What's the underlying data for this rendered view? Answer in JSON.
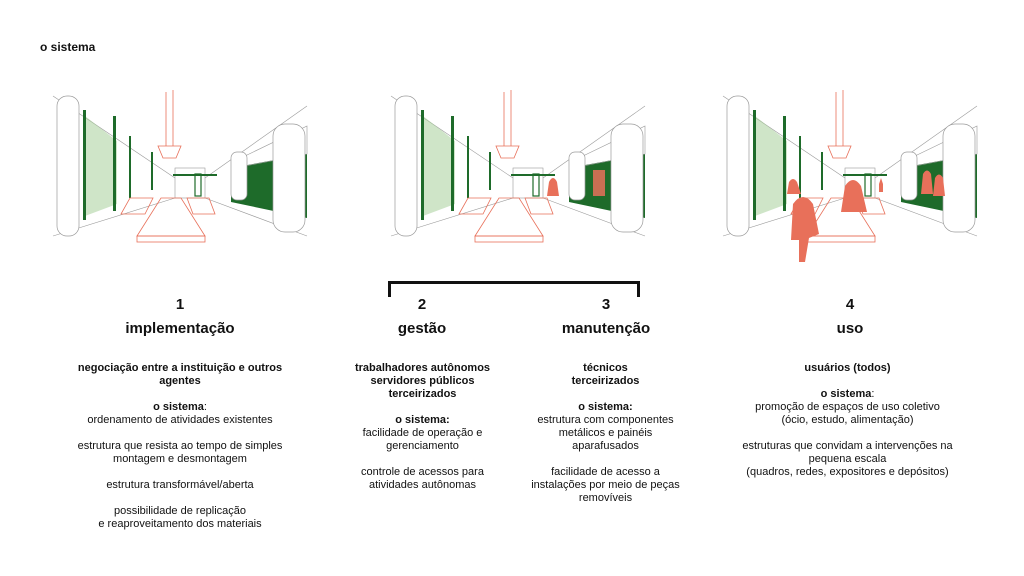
{
  "title": "o sistema",
  "phases": [
    {
      "num": "1",
      "name": "implementação"
    },
    {
      "num": "2",
      "name": "gestão"
    },
    {
      "num": "3",
      "name": "manutenção"
    },
    {
      "num": "4",
      "name": "uso"
    }
  ],
  "columns": [
    {
      "lead": [
        "negociação entre a instituição e outros",
        "agentes"
      ],
      "system_label": "o sistema",
      "system_suffix": ":",
      "lines": [
        "ordenamento de atividades existentes",
        "",
        "estrutura que resista ao tempo de simples",
        "montagem e desmontagem",
        "",
        "estrutura transformável/aberta",
        "",
        "possibilidade de replicação",
        "e reaproveitamento dos materiais"
      ]
    },
    {
      "lead": [
        "trabalhadores autônomos",
        "servidores públicos",
        "terceirizados"
      ],
      "system_label": "o sistema:",
      "system_suffix": "",
      "lines": [
        "facilidade de operação e",
        "gerenciamento",
        "",
        "controle de acessos para",
        "atividades autônomas"
      ]
    },
    {
      "lead": [
        "técnicos",
        "terceirizados"
      ],
      "system_label": "o sistema:",
      "system_suffix": "",
      "lines": [
        "estrutura com componentes",
        "metálicos e painéis",
        "aparafusados",
        "",
        "facilidade de acesso a",
        "instalações por meio de peças",
        "removíveis"
      ]
    },
    {
      "lead": [
        "usuários (todos)"
      ],
      "system_label": "o sistema",
      "system_suffix": ":",
      "lines": [
        "promoção de espaços de uso coletivo",
        "(ócio, estudo, alimentação)",
        "",
        "estruturas que convidam a intervenções na",
        "pequena escala",
        "(quadros, redes, expositores e depósitos)"
      ]
    }
  ],
  "colors": {
    "green": "#1e6b2a",
    "salmon": "#e8705a",
    "line": "#9a9a9a"
  }
}
